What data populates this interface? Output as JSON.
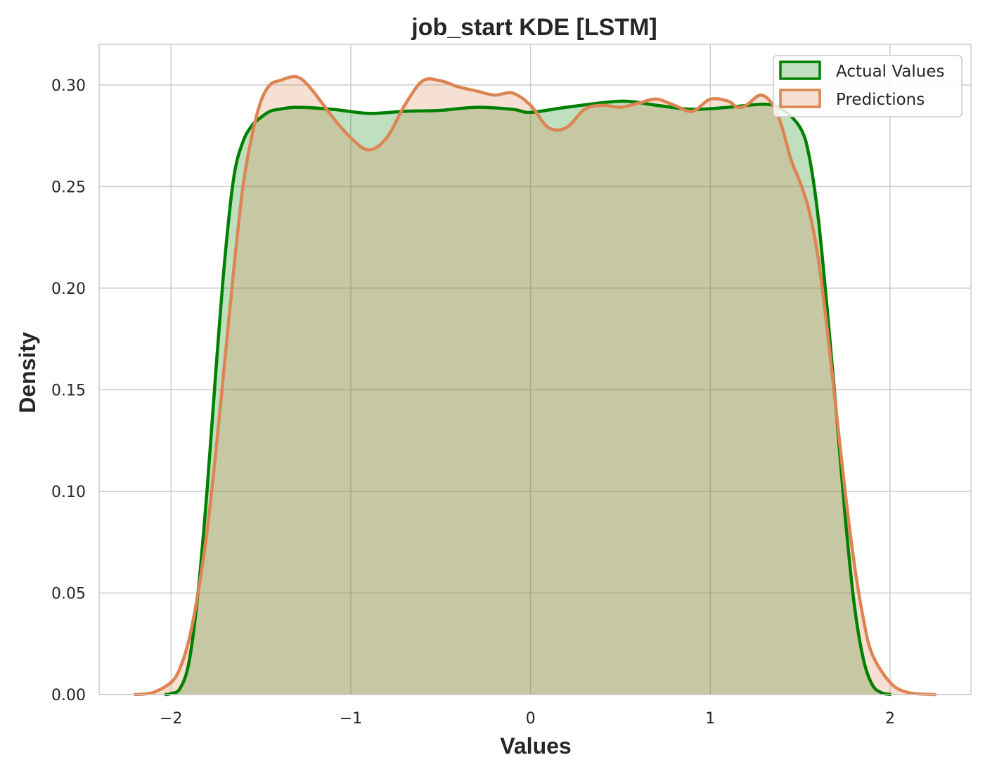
{
  "chart_data": {
    "type": "area",
    "title": "job_start KDE [LSTM]",
    "xlabel": "Values",
    "ylabel": "Density",
    "xlim": [
      -2.4,
      2.45
    ],
    "ylim": [
      0,
      0.32
    ],
    "x_ticks": [
      -2,
      -1,
      0,
      1,
      2
    ],
    "x_tick_labels": [
      "−2",
      "−1",
      "0",
      "1",
      "2"
    ],
    "y_ticks": [
      0.0,
      0.05,
      0.1,
      0.15,
      0.2,
      0.25,
      0.3
    ],
    "y_tick_labels": [
      "0.00",
      "0.05",
      "0.10",
      "0.15",
      "0.20",
      "0.25",
      "0.30"
    ],
    "grid": true,
    "legend_position": "top-right",
    "series": [
      {
        "name": "Actual Values",
        "color": "#008000",
        "fill": "#008000",
        "points": [
          [
            -2.03,
            0.0
          ],
          [
            -2.0,
            0.0005
          ],
          [
            -1.95,
            0.003
          ],
          [
            -1.9,
            0.016
          ],
          [
            -1.85,
            0.05
          ],
          [
            -1.8,
            0.1
          ],
          [
            -1.75,
            0.16
          ],
          [
            -1.7,
            0.215
          ],
          [
            -1.65,
            0.255
          ],
          [
            -1.6,
            0.272
          ],
          [
            -1.55,
            0.28
          ],
          [
            -1.5,
            0.284
          ],
          [
            -1.45,
            0.287
          ],
          [
            -1.4,
            0.288
          ],
          [
            -1.3,
            0.289
          ],
          [
            -1.1,
            0.288
          ],
          [
            -0.9,
            0.286
          ],
          [
            -0.7,
            0.287
          ],
          [
            -0.5,
            0.2875
          ],
          [
            -0.3,
            0.289
          ],
          [
            -0.1,
            0.288
          ],
          [
            0.0,
            0.2865
          ],
          [
            0.2,
            0.289
          ],
          [
            0.5,
            0.292
          ],
          [
            0.7,
            0.29
          ],
          [
            0.9,
            0.288
          ],
          [
            1.1,
            0.289
          ],
          [
            1.3,
            0.2905
          ],
          [
            1.4,
            0.288
          ],
          [
            1.5,
            0.279
          ],
          [
            1.55,
            0.265
          ],
          [
            1.6,
            0.235
          ],
          [
            1.65,
            0.19
          ],
          [
            1.7,
            0.14
          ],
          [
            1.75,
            0.088
          ],
          [
            1.8,
            0.045
          ],
          [
            1.85,
            0.018
          ],
          [
            1.9,
            0.005
          ],
          [
            1.95,
            0.001
          ],
          [
            2.0,
            0.0
          ]
        ]
      },
      {
        "name": "Predictions",
        "color": "#DD8452",
        "fill": "#DD8452",
        "points": [
          [
            -2.2,
            0.0
          ],
          [
            -2.1,
            0.001
          ],
          [
            -2.0,
            0.006
          ],
          [
            -1.95,
            0.013
          ],
          [
            -1.9,
            0.027
          ],
          [
            -1.85,
            0.05
          ],
          [
            -1.8,
            0.08
          ],
          [
            -1.75,
            0.12
          ],
          [
            -1.7,
            0.165
          ],
          [
            -1.65,
            0.21
          ],
          [
            -1.6,
            0.25
          ],
          [
            -1.55,
            0.275
          ],
          [
            -1.5,
            0.292
          ],
          [
            -1.45,
            0.3
          ],
          [
            -1.4,
            0.302
          ],
          [
            -1.3,
            0.304
          ],
          [
            -1.22,
            0.298
          ],
          [
            -1.1,
            0.284
          ],
          [
            -1.0,
            0.274
          ],
          [
            -0.9,
            0.268
          ],
          [
            -0.8,
            0.274
          ],
          [
            -0.7,
            0.29
          ],
          [
            -0.6,
            0.302
          ],
          [
            -0.5,
            0.302
          ],
          [
            -0.4,
            0.299
          ],
          [
            -0.3,
            0.297
          ],
          [
            -0.2,
            0.295
          ],
          [
            -0.1,
            0.296
          ],
          [
            0.0,
            0.29
          ],
          [
            0.1,
            0.279
          ],
          [
            0.2,
            0.279
          ],
          [
            0.3,
            0.288
          ],
          [
            0.4,
            0.29
          ],
          [
            0.5,
            0.289
          ],
          [
            0.6,
            0.291
          ],
          [
            0.7,
            0.293
          ],
          [
            0.8,
            0.29
          ],
          [
            0.9,
            0.287
          ],
          [
            1.0,
            0.293
          ],
          [
            1.1,
            0.292
          ],
          [
            1.15,
            0.289
          ],
          [
            1.2,
            0.29
          ],
          [
            1.28,
            0.295
          ],
          [
            1.35,
            0.29
          ],
          [
            1.4,
            0.279
          ],
          [
            1.45,
            0.263
          ],
          [
            1.5,
            0.252
          ],
          [
            1.55,
            0.238
          ],
          [
            1.6,
            0.215
          ],
          [
            1.65,
            0.18
          ],
          [
            1.7,
            0.14
          ],
          [
            1.75,
            0.1
          ],
          [
            1.8,
            0.065
          ],
          [
            1.85,
            0.038
          ],
          [
            1.9,
            0.02
          ],
          [
            2.0,
            0.006
          ],
          [
            2.1,
            0.001
          ],
          [
            2.25,
            0.0
          ]
        ]
      }
    ]
  }
}
